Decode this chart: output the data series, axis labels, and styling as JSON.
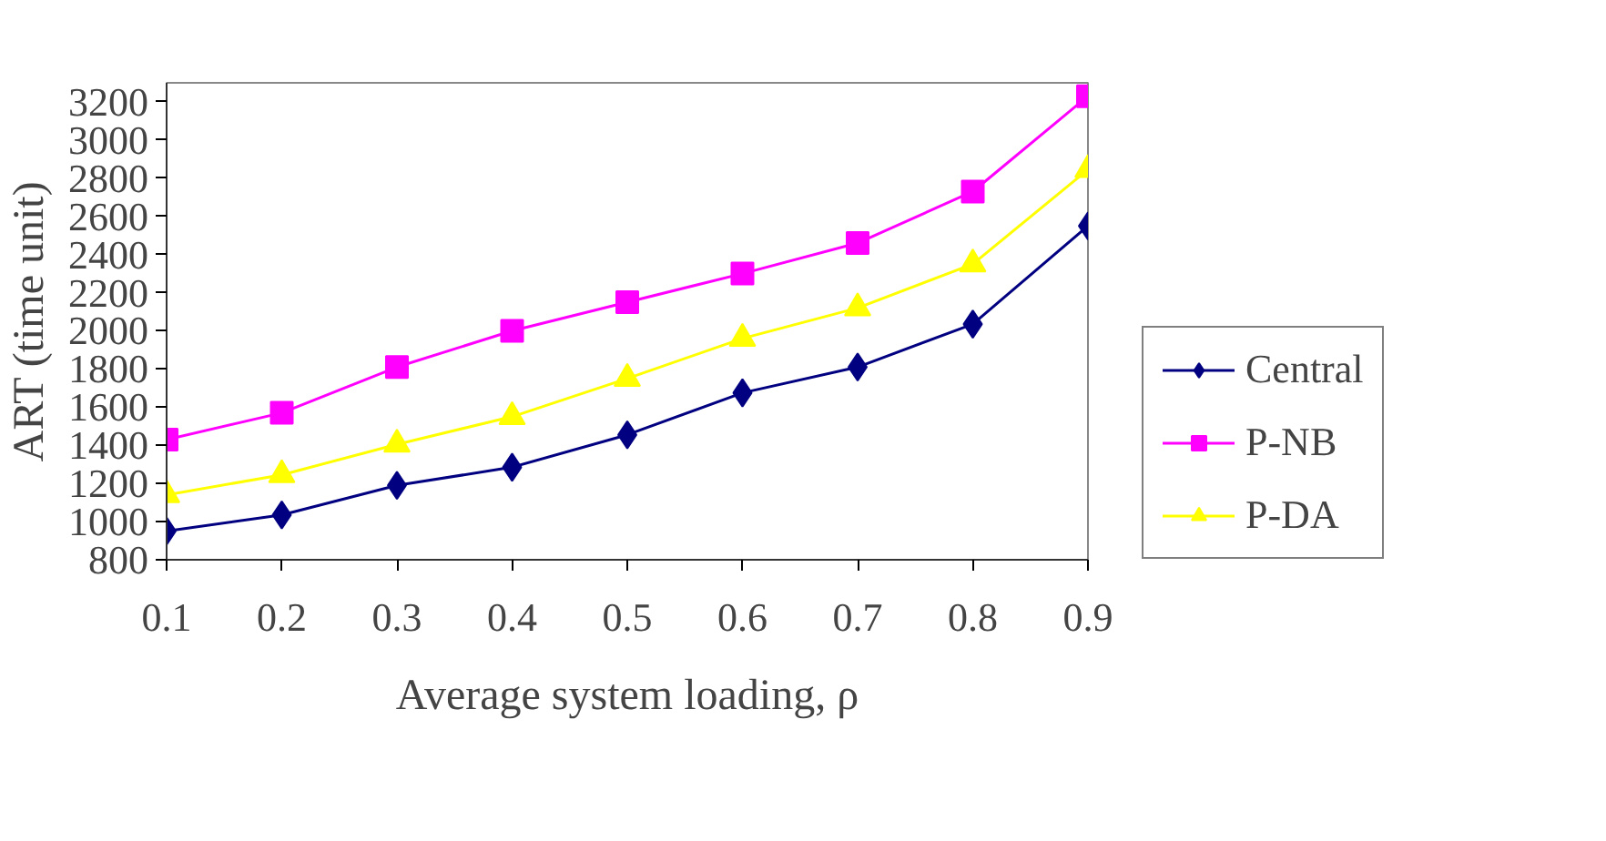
{
  "chart_data": {
    "type": "line",
    "xlabel": "Average system loading, ρ",
    "ylabel": "ART (time unit)",
    "x": [
      0.1,
      0.2,
      0.3,
      0.4,
      0.5,
      0.6,
      0.7,
      0.8,
      0.9
    ],
    "xlim": [
      0.1,
      0.9
    ],
    "xticks": [
      0.1,
      0.2,
      0.3,
      0.4,
      0.5,
      0.6,
      0.7,
      0.8,
      0.9
    ],
    "ylim": [
      800,
      3300
    ],
    "yticks": [
      800,
      1000,
      1200,
      1400,
      1600,
      1800,
      2000,
      2200,
      2400,
      2600,
      2800,
      3000,
      3200
    ],
    "grid": false,
    "legend": "right",
    "series": [
      {
        "name": "Central",
        "color": "#000080",
        "marker": "diamond",
        "values": [
          950,
          1035,
          1190,
          1285,
          1455,
          1675,
          1810,
          2035,
          2550
        ]
      },
      {
        "name": "P-NB",
        "color": "#ff00ff",
        "marker": "square",
        "values": [
          1430,
          1570,
          1810,
          2000,
          2150,
          2300,
          2460,
          2730,
          3230
        ]
      },
      {
        "name": "P-DA",
        "color": "#ffff00",
        "marker": "triangle",
        "values": [
          1140,
          1245,
          1405,
          1550,
          1750,
          1960,
          2120,
          2350,
          2845
        ]
      }
    ]
  }
}
